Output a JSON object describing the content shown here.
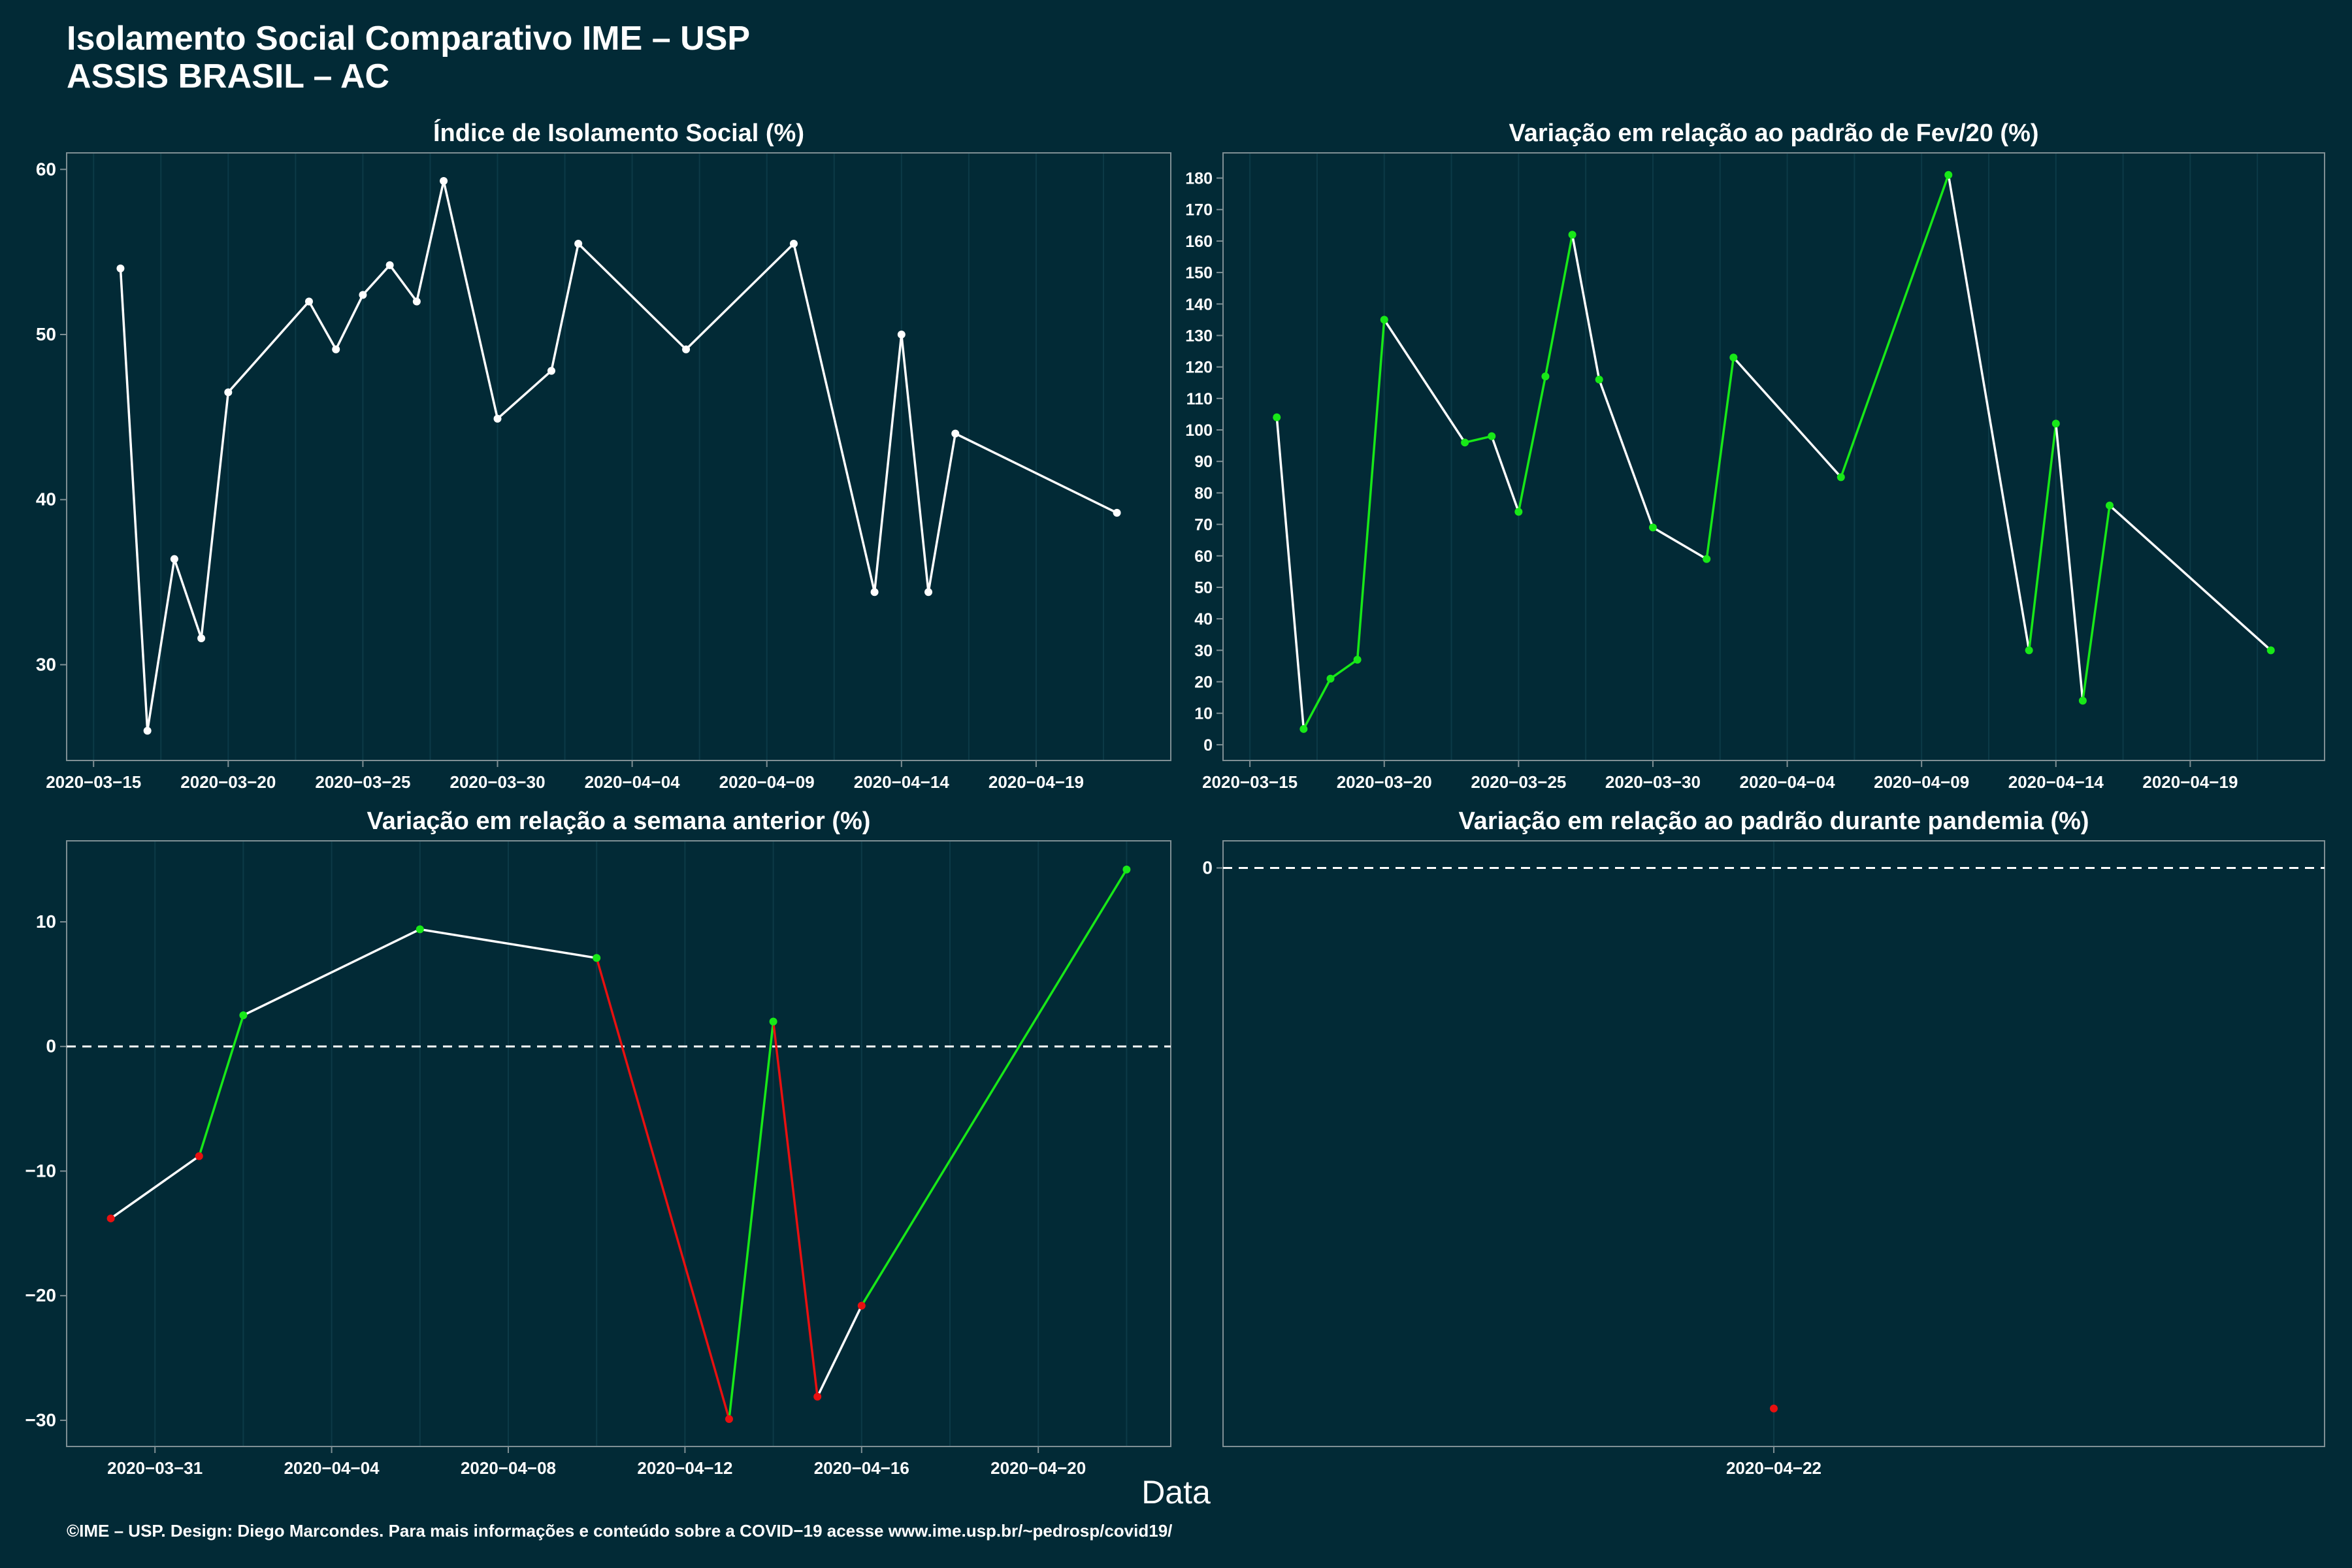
{
  "header": {
    "title_line1": "Isolamento Social Comparativo IME – USP",
    "title_line2": "ASSIS BRASIL – AC"
  },
  "x_axis_title": "Data",
  "footer": "©IME – USP. Design: Diego Marcondes. Para mais informações e conteúdo sobre a COVID−19 acesse www.ime.usp.br/~pedrosp/covid19/",
  "colors": {
    "background": "#022a36",
    "white": "#ffffff",
    "up": "#18e818",
    "down": "#e81010",
    "grid": "#0c3a47",
    "border": "#7f8f94"
  },
  "chart_data": [
    {
      "type": "line",
      "title": "Índice de Isolamento Social (%)",
      "x": [
        "2020-03-16",
        "2020-03-17",
        "2020-03-18",
        "2020-03-19",
        "2020-03-20",
        "2020-03-23",
        "2020-03-24",
        "2020-03-25",
        "2020-03-26",
        "2020-03-27",
        "2020-03-28",
        "2020-03-30",
        "2020-04-01",
        "2020-04-02",
        "2020-04-06",
        "2020-04-10",
        "2020-04-13",
        "2020-04-14",
        "2020-04-15",
        "2020-04-16",
        "2020-04-22"
      ],
      "values": [
        54.0,
        26.0,
        36.4,
        31.6,
        46.5,
        52.0,
        49.1,
        52.4,
        54.2,
        52.0,
        59.3,
        44.9,
        47.8,
        55.5,
        49.1,
        55.5,
        34.4,
        50.0,
        34.4,
        44.0,
        39.2
      ],
      "xlim": [
        "2020-03-14",
        "2020-04-24"
      ],
      "ylim": [
        24.2,
        61.0
      ],
      "x_ticks": [
        "2020-03-15",
        "2020-03-20",
        "2020-03-25",
        "2020-03-30",
        "2020-04-04",
        "2020-04-09",
        "2020-04-14",
        "2020-04-19"
      ],
      "y_ticks": [
        30,
        40,
        50,
        60
      ],
      "line_color": "white",
      "grid": true
    },
    {
      "type": "line",
      "title": "Variação em relação ao padrão de Fev/20 (%)",
      "x": [
        "2020-03-16",
        "2020-03-17",
        "2020-03-18",
        "2020-03-19",
        "2020-03-20",
        "2020-03-23",
        "2020-03-24",
        "2020-03-25",
        "2020-03-26",
        "2020-03-27",
        "2020-03-28",
        "2020-03-30",
        "2020-04-01",
        "2020-04-02",
        "2020-04-06",
        "2020-04-10",
        "2020-04-13",
        "2020-04-14",
        "2020-04-15",
        "2020-04-16",
        "2020-04-22"
      ],
      "values": [
        104,
        5,
        21,
        27,
        135,
        96,
        98,
        74,
        117,
        162,
        116,
        69,
        59,
        123,
        85,
        181,
        30,
        102,
        14,
        76,
        30
      ],
      "xlim": [
        "2020-03-14",
        "2020-04-24"
      ],
      "ylim": [
        -5,
        188
      ],
      "x_ticks": [
        "2020-03-15",
        "2020-03-20",
        "2020-03-25",
        "2020-03-30",
        "2020-04-04",
        "2020-04-09",
        "2020-04-14",
        "2020-04-19"
      ],
      "y_ticks": [
        0,
        10,
        20,
        30,
        40,
        50,
        60,
        70,
        80,
        90,
        100,
        110,
        120,
        130,
        140,
        150,
        160,
        170,
        180
      ],
      "line_color": "green where rising, white where falling",
      "grid": true
    },
    {
      "type": "line",
      "title": "Variação em relação a semana anterior (%)",
      "x": [
        "2020-03-30",
        "2020-04-01",
        "2020-04-02",
        "2020-04-06",
        "2020-04-10",
        "2020-04-13",
        "2020-04-14",
        "2020-04-15",
        "2020-04-16",
        "2020-04-22"
      ],
      "values": [
        -13.8,
        -8.8,
        2.5,
        9.4,
        7.1,
        -29.9,
        2.0,
        -28.1,
        -20.8,
        14.2
      ],
      "point_colors": [
        "red",
        "red",
        "green",
        "green",
        "green",
        "red",
        "green",
        "red",
        "red",
        "green"
      ],
      "reference_line": 0,
      "xlim": [
        "2020-03-29",
        "2020-04-23"
      ],
      "ylim": [
        -32.1,
        16.5
      ],
      "x_ticks": [
        "2020-03-31",
        "2020-04-04",
        "2020-04-08",
        "2020-04-12",
        "2020-04-16",
        "2020-04-20"
      ],
      "y_ticks": [
        -30,
        -20,
        -10,
        0,
        10
      ],
      "grid": true
    },
    {
      "type": "scatter",
      "title": "Variação em relação ao padrão durante pandemia (%)",
      "x": [
        "2020-04-22"
      ],
      "values": [
        -29.9
      ],
      "point_colors": [
        "red"
      ],
      "reference_line": 0,
      "ylim": [
        -32.0,
        1.5
      ],
      "x_ticks": [
        "2020-04-22"
      ],
      "y_ticks": [
        0
      ],
      "grid": true
    }
  ]
}
